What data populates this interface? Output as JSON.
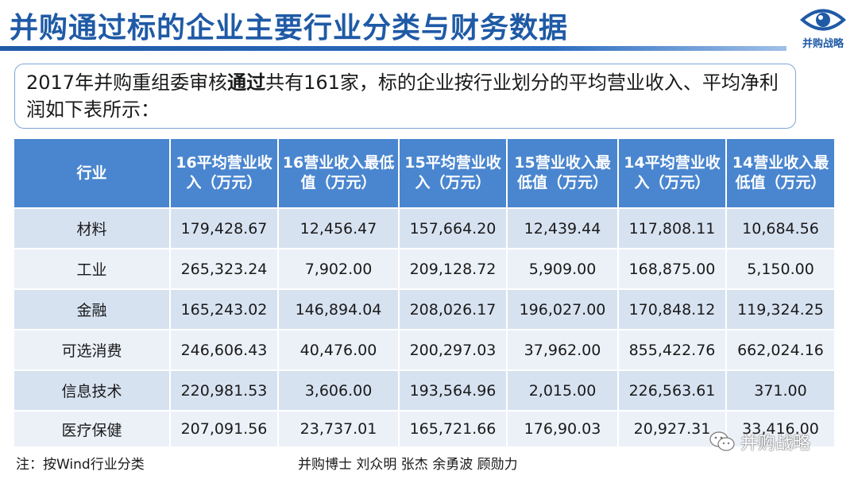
{
  "header": {
    "title": "并购通过标的企业主要行业分类与财务数据",
    "logo_text": "并购战略"
  },
  "intro": {
    "text_before": "2017年并购重组委审核",
    "text_bold": "通过",
    "text_after": "共有161家，标的企业按行业划分的平均营业收入、平均净利润如下表所示："
  },
  "table": {
    "headers": [
      "行业",
      "16平均营业收入（万元）",
      "16营业收入最低值（万元）",
      "15平均营业收入（万元）",
      "15营业收入最低值（万元）",
      "14平均营业收入（万元）",
      "14营业收入最低值（万元）"
    ],
    "rows": [
      [
        "材料",
        "179,428.67",
        "12,456.47",
        "157,664.20",
        "12,439.44",
        "117,808.11",
        "10,684.56"
      ],
      [
        "工业",
        "265,323.24",
        "7,902.00",
        "209,128.72",
        "5,909.00",
        "168,875.00",
        "5,150.00"
      ],
      [
        "金融",
        "165,243.02",
        "146,894.04",
        "208,026.17",
        "196,027.00",
        "170,848.12",
        "119,324.25"
      ],
      [
        "可选消费",
        "246,606.43",
        "40,476.00",
        "200,297.03",
        "37,962.00",
        "855,422.76",
        "662,024.16"
      ],
      [
        "信息技术",
        "220,981.53",
        "3,606.00",
        "193,564.96",
        "2,015.00",
        "226,563.61",
        "371.00"
      ],
      [
        "医疗保健",
        "207,091.56",
        "23,737.01",
        "165,721.66",
        "176,90.03",
        "20,927.31",
        "33,416.00"
      ]
    ]
  },
  "footer": {
    "note": "注：按Wind行业分类",
    "authors": "并购博士 刘众明 张杰 余勇波 顾勋力"
  },
  "watermark": {
    "text": "并购战略",
    "icon": "wechat-icon"
  },
  "colors": {
    "title": "#1f5aa6",
    "header_bg": "#4a86cf",
    "row_odd": "#d7e2f1",
    "row_even": "#ecf1f8"
  }
}
